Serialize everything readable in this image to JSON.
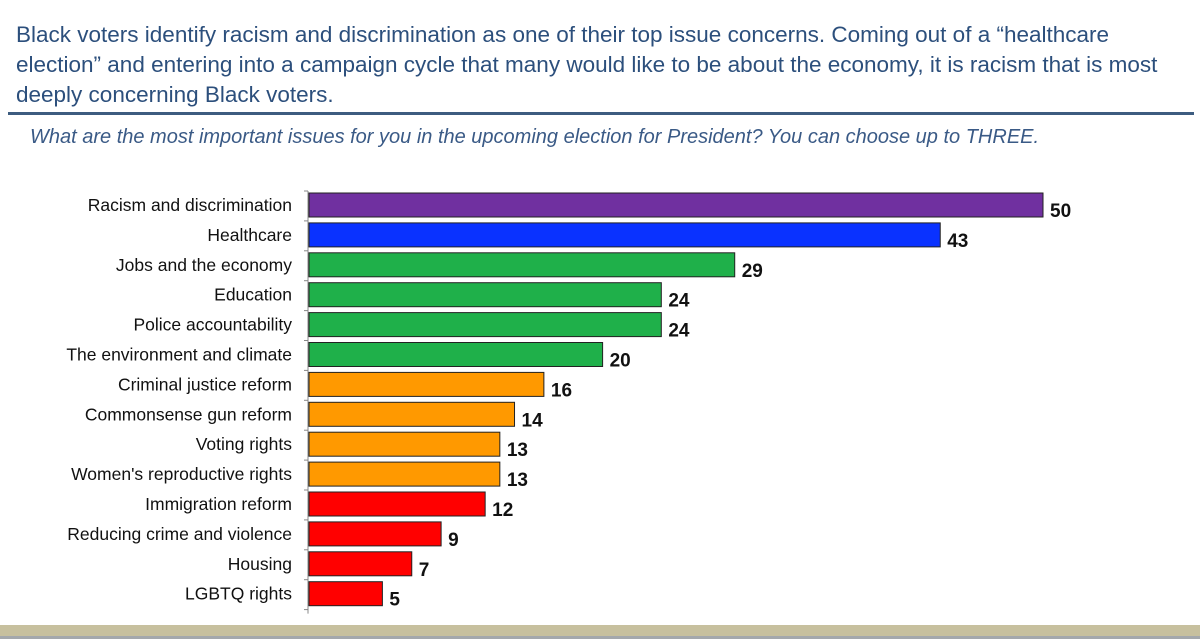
{
  "intro": "Black voters identify racism and discrimination as one of their top issue concerns.  Coming out of a “healthcare election” and entering into a campaign cycle that many would like to be about the economy, it is racism that is most deeply concerning Black voters.",
  "chart_data": {
    "type": "bar",
    "title": "What are the most important issues for you in the upcoming election for President? You can choose up to THREE.",
    "orientation": "horizontal",
    "xlim": [
      0,
      50
    ],
    "categories": [
      "Racism and discrimination",
      "Healthcare",
      "Jobs and the economy",
      "Education",
      "Police accountability",
      "The environment and climate",
      "Criminal justice reform",
      "Commonsense gun reform",
      "Voting rights",
      "Women's reproductive rights",
      "Immigration reform",
      "Reducing crime and violence",
      "Housing",
      "LGBTQ rights"
    ],
    "values": [
      50,
      43,
      29,
      24,
      24,
      20,
      16,
      14,
      13,
      13,
      12,
      9,
      7,
      5
    ],
    "colors": [
      "#7030a0",
      "#0a32ff",
      "#1fb04a",
      "#1fb04a",
      "#1fb04a",
      "#1fb04a",
      "#ff9900",
      "#ff9900",
      "#ff9900",
      "#ff9900",
      "#ff0000",
      "#ff0000",
      "#ff0000",
      "#ff0000"
    ]
  }
}
